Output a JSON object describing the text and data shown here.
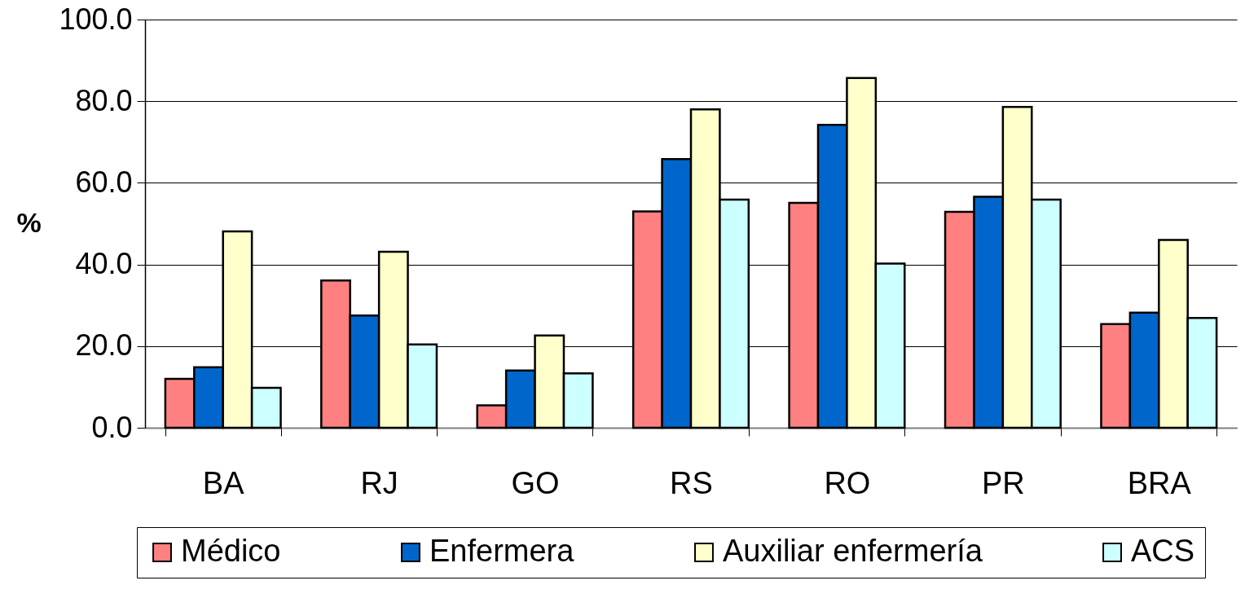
{
  "chart_data": {
    "type": "bar",
    "ylabel": "%",
    "categories": [
      "BA",
      "RJ",
      "GO",
      "RS",
      "RO",
      "PR",
      "BRA"
    ],
    "series": [
      {
        "name": "Médico",
        "color": "#ff8080",
        "values": [
          12.0,
          36.1,
          5.5,
          53.0,
          55.1,
          52.9,
          25.4
        ]
      },
      {
        "name": "Enfermera",
        "color": "#0066cc",
        "values": [
          14.8,
          27.5,
          14.0,
          65.8,
          74.2,
          56.6,
          28.2
        ]
      },
      {
        "name": "Auxiliar enfermería",
        "color": "#ffffcc",
        "values": [
          48.1,
          43.1,
          22.6,
          78.0,
          85.7,
          78.6,
          46.0
        ]
      },
      {
        "name": "ACS",
        "color": "#ccffff",
        "values": [
          9.8,
          20.4,
          13.3,
          55.9,
          40.2,
          55.9,
          26.9
        ]
      }
    ],
    "ylim": [
      0,
      100
    ],
    "yticks": [
      {
        "value": 0,
        "label": "0.0"
      },
      {
        "value": 20,
        "label": "20.0"
      },
      {
        "value": 40,
        "label": "40.0"
      },
      {
        "value": 60,
        "label": "60.0"
      },
      {
        "value": 80,
        "label": "80.0"
      },
      {
        "value": 100,
        "label": "100.0"
      }
    ],
    "grid": "y",
    "legend": "bottom"
  }
}
